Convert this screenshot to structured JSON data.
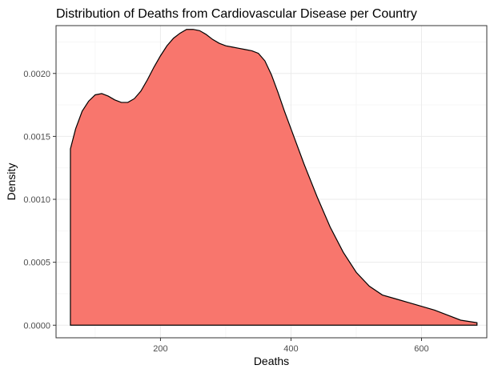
{
  "chart_data": {
    "type": "area",
    "title": "Distribution of Deaths from Cardiovascular Disease per Country",
    "xlabel": "Deaths",
    "ylabel": "Density",
    "xlim": [
      40,
      700
    ],
    "ylim": [
      -0.0001,
      0.00238
    ],
    "x_ticks": [
      200,
      400,
      600
    ],
    "x_tick_labels": [
      "200",
      "400",
      "600"
    ],
    "y_ticks": [
      0.0,
      0.0005,
      0.001,
      0.0015,
      0.002
    ],
    "y_tick_labels": [
      "0.0000",
      "0.0005",
      "0.0010",
      "0.0015",
      "0.0020"
    ],
    "grid": true,
    "fill_color": "#F8766D",
    "outline_color": "#000000",
    "series": [
      {
        "x": [
          62,
          70,
          80,
          90,
          100,
          110,
          120,
          130,
          140,
          150,
          160,
          170,
          180,
          190,
          200,
          210,
          220,
          230,
          240,
          250,
          260,
          270,
          280,
          290,
          300,
          310,
          320,
          330,
          340,
          350,
          360,
          370,
          380,
          390,
          400,
          420,
          440,
          460,
          480,
          500,
          520,
          540,
          560,
          580,
          600,
          620,
          640,
          660,
          685
        ],
        "y": [
          0.0014,
          0.00156,
          0.0017,
          0.00178,
          0.00183,
          0.00184,
          0.00182,
          0.00179,
          0.00177,
          0.00177,
          0.0018,
          0.00186,
          0.00195,
          0.00205,
          0.00214,
          0.00222,
          0.00228,
          0.00232,
          0.00235,
          0.00235,
          0.00234,
          0.00231,
          0.00227,
          0.00224,
          0.00222,
          0.00221,
          0.0022,
          0.00219,
          0.00218,
          0.00216,
          0.0021,
          0.00199,
          0.00185,
          0.0017,
          0.00156,
          0.00128,
          0.00102,
          0.00078,
          0.00058,
          0.00042,
          0.00031,
          0.00024,
          0.00021,
          0.00018,
          0.00015,
          0.00012,
          8e-05,
          4e-05,
          2e-05
        ]
      }
    ]
  }
}
